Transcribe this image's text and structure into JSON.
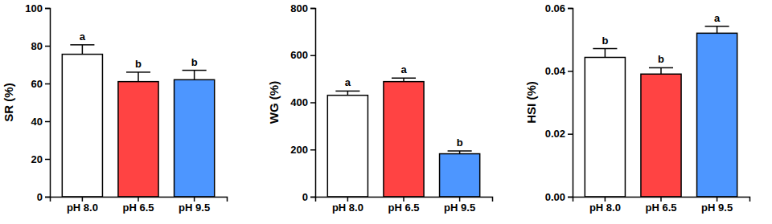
{
  "chart_data": [
    {
      "type": "bar",
      "y_label": "SR (%)",
      "categories": [
        "pH 8.0",
        "pH 6.5",
        "pH 9.5"
      ],
      "values": [
        75.5,
        61,
        62
      ],
      "errors": [
        5,
        5,
        5
      ],
      "annotations": [
        "a",
        "b",
        "b"
      ],
      "colors": [
        "#ffffff",
        "#ff4343",
        "#4d96ff"
      ],
      "ylim": [
        0,
        100
      ],
      "yticks": [
        0,
        20,
        40,
        60,
        80,
        100
      ]
    },
    {
      "type": "bar",
      "y_label": "WG (%)",
      "categories": [
        "pH 8.0",
        "pH 6.5",
        "pH 9.5"
      ],
      "values": [
        430,
        488,
        182
      ],
      "errors": [
        18,
        15,
        12
      ],
      "annotations": [
        "a",
        "a",
        "b"
      ],
      "colors": [
        "#ffffff",
        "#ff4343",
        "#4d96ff"
      ],
      "ylim": [
        0,
        800
      ],
      "yticks": [
        0,
        200,
        400,
        600,
        800
      ]
    },
    {
      "type": "bar",
      "y_label": "HSI (%)",
      "categories": [
        "pH 8.0",
        "pH 6.5",
        "pH 9.5"
      ],
      "values": [
        0.0443,
        0.039,
        0.052
      ],
      "errors": [
        0.0028,
        0.002,
        0.0022
      ],
      "annotations": [
        "b",
        "b",
        "a"
      ],
      "colors": [
        "#ffffff",
        "#ff4343",
        "#4d96ff"
      ],
      "ylim": [
        0,
        0.06
      ],
      "yticks": [
        {
          "value": 0,
          "label": "0.00"
        },
        0.02,
        0.04,
        0.06
      ]
    }
  ]
}
